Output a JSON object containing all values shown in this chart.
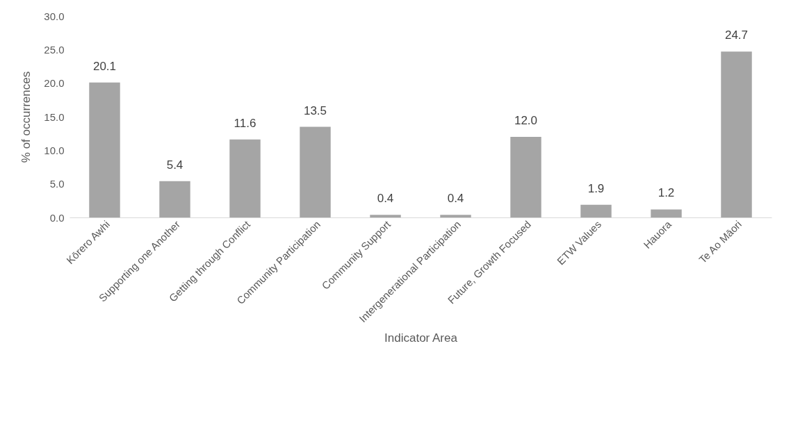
{
  "chart_data": {
    "type": "bar",
    "xlabel": "Indicator Area",
    "ylabel": "% of occurrences",
    "categories": [
      "Kōrero Awhi",
      "Supporting one Another",
      "Getting through Conflict",
      "Community Participation",
      "Community Support",
      "Intergenerational Participation",
      "Future, Growth Focused",
      "ETW Values",
      "Hauora",
      "Te Ao Māori"
    ],
    "values": [
      20.1,
      5.4,
      11.6,
      13.5,
      0.4,
      0.4,
      12.0,
      1.9,
      1.2,
      24.7
    ],
    "value_labels": [
      "20.1",
      "5.4",
      "11.6",
      "13.5",
      "0.4",
      "0.4",
      "12.0",
      "1.9",
      "1.2",
      "24.7"
    ],
    "color": "#a5a5a5",
    "ylim": [
      0,
      30
    ],
    "yticks": [
      {
        "value": 0,
        "label": "0.0"
      },
      {
        "value": 5,
        "label": "5.0"
      },
      {
        "value": 10,
        "label": "10.0"
      },
      {
        "value": 15,
        "label": "15.0"
      },
      {
        "value": 20,
        "label": "20.0"
      },
      {
        "value": 25,
        "label": "25.0"
      },
      {
        "value": 30,
        "label": "30.0"
      }
    ],
    "grid": false
  }
}
